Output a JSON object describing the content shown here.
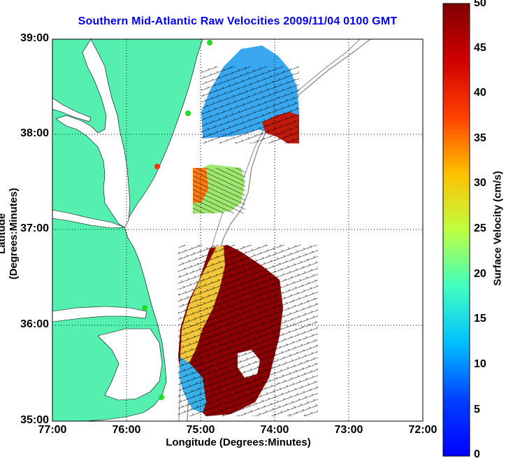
{
  "title": "Southern Mid-Atlantic Raw Velocities 2009/11/04 0100 GMT",
  "xlabel": "Longitude (Degrees:Minutes)",
  "ylabel": "Latitude (Degrees:Minutes)",
  "colorbar": {
    "label": "Surface Velocity (cm/s)",
    "min": 0,
    "max": 50,
    "ticks": [
      "0",
      "5",
      "10",
      "15",
      "20",
      "25",
      "30",
      "35",
      "40",
      "45",
      "50"
    ],
    "colormap": "jet"
  },
  "axes": {
    "lon_range": [
      -77,
      -72
    ],
    "lat_range": [
      35,
      39
    ],
    "xticks": [
      "77:00",
      "76:00",
      "75:00",
      "74:00",
      "73:00",
      "72:00"
    ],
    "yticks": [
      "39:00",
      "38:00",
      "37:00",
      "36:00",
      "35:00"
    ],
    "grid": "dotted"
  },
  "colors": {
    "land": "#55f0b0",
    "water": "#ffffff",
    "title": "#0000ff",
    "stations_green": "#22dd22",
    "station_red": "#ff3300",
    "isobath": "#999999"
  }
}
